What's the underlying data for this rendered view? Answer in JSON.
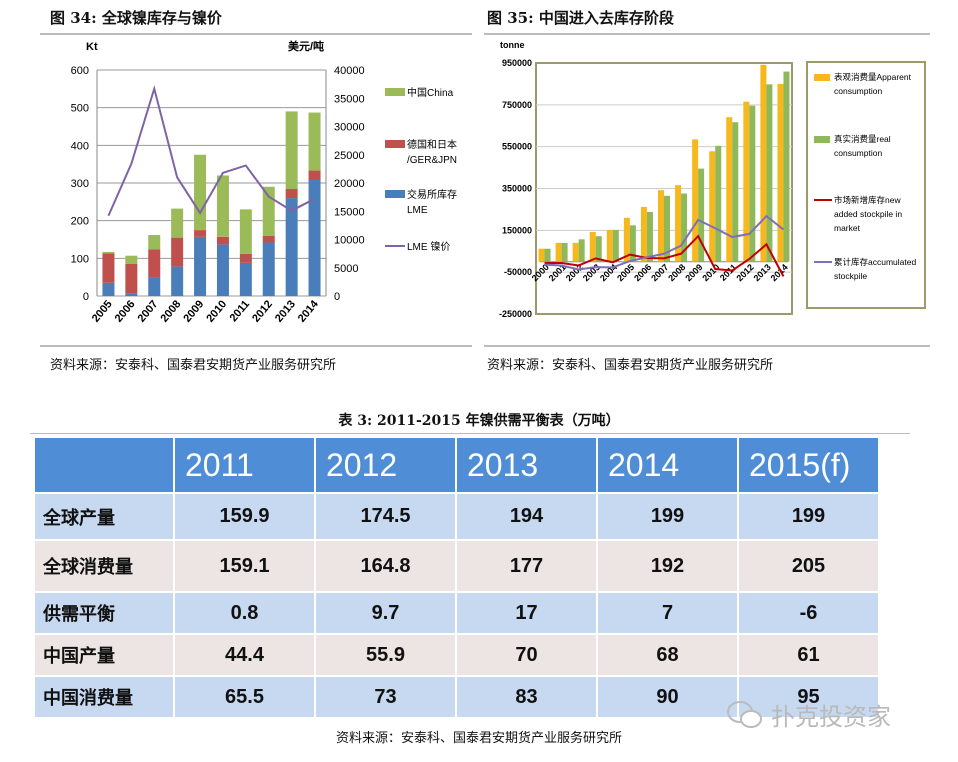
{
  "fig34": {
    "title": "图 34: 全球镍库存与镍价",
    "source": "资料来源：安泰科、国泰君安期货产业服务研究所"
  },
  "fig35": {
    "title": "图 35: 中国进入去库存阶段",
    "source": "资料来源：安泰科、国泰君安期货产业服务研究所"
  },
  "chart_data": [
    {
      "type": "bar",
      "stacked": true,
      "categories": [
        "2005",
        "2006",
        "2007",
        "2008",
        "2009",
        "2010",
        "2011",
        "2012",
        "2013",
        "2014"
      ],
      "ylabel": "Kt",
      "y2label": "美元/吨",
      "ylim": [
        0,
        600
      ],
      "yticks": [
        0,
        100,
        200,
        300,
        400,
        500,
        600
      ],
      "y2lim": [
        0,
        40000
      ],
      "y2ticks": [
        0,
        5000,
        10000,
        15000,
        20000,
        25000,
        30000,
        35000,
        40000
      ],
      "grid": true,
      "legend": "right",
      "series": [
        {
          "name": "交易所库存LME",
          "legend": [
            "交易所库存",
            "LME"
          ],
          "color": "#4a7ebb",
          "values": [
            35,
            7,
            48,
            78,
            157,
            137,
            88,
            142,
            260,
            308
          ]
        },
        {
          "name": "德国和日本/GER&JPN",
          "legend": [
            "德国和日本",
            "/GER&JPN"
          ],
          "color": "#c0504d",
          "values": [
            78,
            78,
            76,
            77,
            18,
            20,
            24,
            18,
            24,
            25
          ]
        },
        {
          "name": "中国China",
          "legend": [
            "中国China"
          ],
          "color": "#9bbb59",
          "values": [
            4,
            22,
            38,
            77,
            200,
            163,
            118,
            130,
            206,
            154
          ]
        },
        {
          "name": "LME 镍价",
          "legend": [
            "LME 镍价"
          ],
          "color": "#7f63a6",
          "type": "line",
          "axis": "right",
          "values": [
            14200,
            23400,
            36700,
            21000,
            14700,
            21800,
            23100,
            17600,
            15100,
            17200
          ]
        }
      ]
    },
    {
      "type": "bar",
      "categories": [
        "2000",
        "2001",
        "2002",
        "2003",
        "2004",
        "2005",
        "2006",
        "2007",
        "2008",
        "2009",
        "2010",
        "2011",
        "2012",
        "2013",
        "2014"
      ],
      "ylabel": "tonne",
      "ylim": [
        -250000,
        950000
      ],
      "yticks": [
        -250000,
        -50000,
        150000,
        350000,
        550000,
        750000,
        950000
      ],
      "ytick_labels": [
        "-250000",
        "-50000",
        "150000",
        "350000",
        "550000",
        "750000",
        "950000"
      ],
      "grid": true,
      "legend": "right",
      "series": [
        {
          "name": "表观消费量Apparent consumption",
          "legend": [
            "表观消费量Apparent",
            "consumption"
          ],
          "color": "#f6b81c",
          "values": [
            62000,
            90000,
            90000,
            142000,
            152000,
            210000,
            262000,
            342000,
            366000,
            585000,
            528000,
            691000,
            765000,
            941000,
            850000
          ]
        },
        {
          "name": "真实消费量real consumption",
          "legend": [
            "真实消费量real",
            "consumption"
          ],
          "color": "#8fb85a",
          "values": [
            62000,
            90000,
            107000,
            122000,
            152000,
            174000,
            238000,
            315000,
            326000,
            445000,
            554000,
            667000,
            746000,
            848000,
            909000
          ]
        },
        {
          "name": "市场新增库存new added stockpile in market",
          "legend": [
            "市场新增库存new",
            "added stockpile in",
            "market"
          ],
          "color": "#c00000",
          "type": "line",
          "values": [
            -6000,
            -6000,
            -18000,
            16000,
            -3000,
            34000,
            18000,
            16000,
            38000,
            122000,
            -35000,
            -42000,
            13000,
            83000,
            -70000
          ]
        },
        {
          "name": "累计库存accumulated stockpile",
          "legend": [
            "累计库存accumulated",
            "stockpile"
          ],
          "color": "#7f6fb8",
          "type": "line",
          "values": [
            -14000,
            -18000,
            -37000,
            -26000,
            -27000,
            3000,
            21000,
            38000,
            77000,
            200000,
            160000,
            118000,
            133000,
            218000,
            154000
          ]
        }
      ]
    }
  ],
  "table": {
    "caption": "表 3: 2011-2015 年镍供需平衡表（万吨）",
    "headers": [
      "",
      "2011",
      "2012",
      "2013",
      "2014",
      "2015(f)"
    ],
    "rows": [
      {
        "label": "全球产量",
        "values": [
          "159.9",
          "174.5",
          "194",
          "199",
          "199"
        ]
      },
      {
        "label": "全球消费量",
        "values": [
          "159.1",
          "164.8",
          "177",
          "192",
          "205"
        ]
      },
      {
        "label": "供需平衡",
        "values": [
          "0.8",
          "9.7",
          "17",
          "7",
          "-6"
        ]
      },
      {
        "label": "中国产量",
        "values": [
          "44.4",
          "55.9",
          "70",
          "68",
          "61"
        ]
      },
      {
        "label": "中国消费量",
        "values": [
          "65.5",
          "73",
          "83",
          "90",
          "95"
        ]
      }
    ],
    "source": "资料来源：安泰科、国泰君安期货产业服务研究所"
  },
  "watermark": {
    "text": "扑克投资家",
    "icon": "wechat-icon"
  }
}
